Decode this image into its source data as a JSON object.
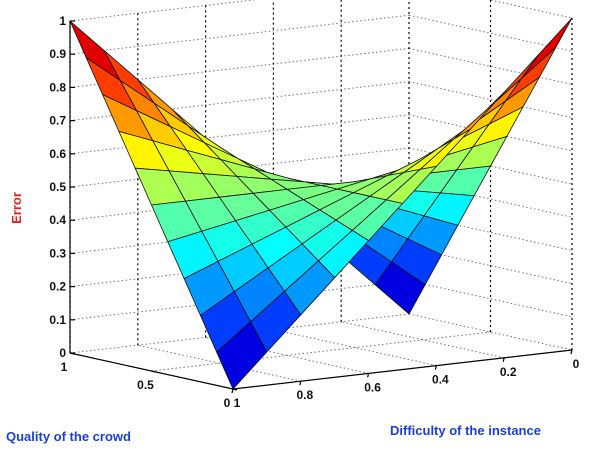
{
  "chart_data": {
    "type": "surface",
    "title": "",
    "xlabel": "Quality of the crowd",
    "ylabel": "Difficulty of the instance",
    "zlabel": "Error",
    "label_colors": {
      "x": "#1a3fd6",
      "y": "#1a3fd6",
      "z": "#e8201c"
    },
    "colormap": "jet",
    "grid": true,
    "x": [
      1.0,
      0.9,
      0.8,
      0.7,
      0.6,
      0.5,
      0.4,
      0.3,
      0.2,
      0.1,
      0.0
    ],
    "y": [
      1.0,
      0.9,
      0.8,
      0.7,
      0.6,
      0.5,
      0.4,
      0.3,
      0.2,
      0.1,
      0.0
    ],
    "z_formula": "z = 0.5 + (q - 0.5) * (d - 0.5) * 2",
    "z_corners": {
      "quality_1_difficulty_1": 1.0,
      "quality_0_difficulty_0": 1.0,
      "quality_1_difficulty_0": 0.0,
      "quality_0_difficulty_1": 0.0
    },
    "xlim": [
      0,
      1
    ],
    "ylim": [
      0,
      1
    ],
    "zlim": [
      0,
      1
    ],
    "xticks": [
      "1",
      "0.5",
      "0"
    ],
    "yticks": [
      "1",
      "0.8",
      "0.6",
      "0.4",
      "0.2",
      "0"
    ],
    "zticks": [
      "0",
      "0.1",
      "0.2",
      "0.3",
      "0.4",
      "0.5",
      "0.6",
      "0.7",
      "0.8",
      "0.9",
      "1"
    ]
  }
}
